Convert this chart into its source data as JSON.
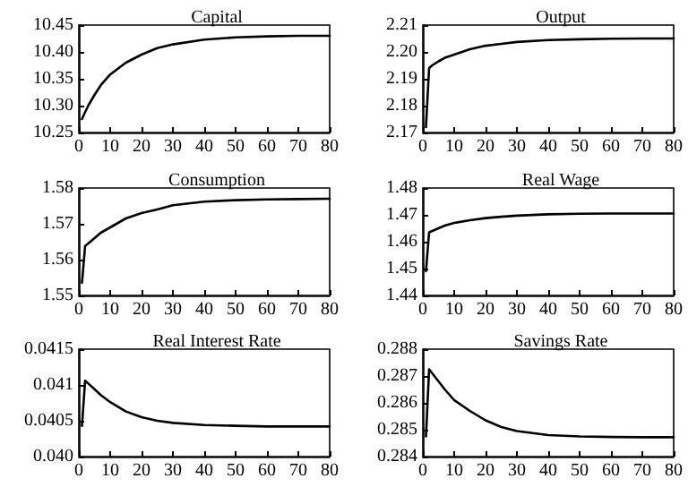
{
  "chart_data": [
    {
      "type": "line",
      "title": "Capital",
      "x": [
        1,
        2,
        3,
        5,
        7,
        10,
        15,
        20,
        25,
        30,
        40,
        50,
        60,
        70,
        80
      ],
      "xlim": [
        0,
        80
      ],
      "xticks": [
        0,
        10,
        20,
        30,
        40,
        50,
        60,
        70,
        80
      ],
      "ylim": [
        10.25,
        10.45
      ],
      "yticks": [
        10.25,
        {
          "value": 10.3,
          "label": "10.30"
        },
        10.35,
        {
          "value": 10.4,
          "label": "10.40"
        },
        10.45
      ],
      "grid": false,
      "marker": "none",
      "line_style": "solid",
      "series": [
        {
          "color": "#000000",
          "values": [
            10.275,
            10.288,
            10.3,
            10.32,
            10.338,
            10.358,
            10.38,
            10.395,
            10.407,
            10.414,
            10.423,
            10.427,
            10.429,
            10.43,
            10.43
          ]
        }
      ]
    },
    {
      "type": "line",
      "title": "Output",
      "x": [
        1,
        2,
        3,
        5,
        7,
        10,
        15,
        20,
        25,
        30,
        40,
        50,
        60,
        70,
        80
      ],
      "xlim": [
        0,
        80
      ],
      "xticks": [
        0,
        10,
        20,
        30,
        40,
        50,
        60,
        70,
        80
      ],
      "ylim": [
        2.17,
        2.21
      ],
      "yticks": [
        2.17,
        2.18,
        2.19,
        {
          "value": 2.2,
          "label": "2.20"
        },
        2.21
      ],
      "grid": false,
      "marker": "none",
      "line_style": "solid",
      "series": [
        {
          "color": "#000000",
          "values": [
            2.172,
            2.194,
            2.195,
            2.1965,
            2.1978,
            2.199,
            2.201,
            2.2023,
            2.203,
            2.2037,
            2.2044,
            2.2047,
            2.2049,
            2.205,
            2.205
          ]
        }
      ]
    },
    {
      "type": "line",
      "title": "Consumption",
      "x": [
        1,
        2,
        3,
        5,
        7,
        10,
        15,
        20,
        25,
        30,
        40,
        50,
        60,
        70,
        80
      ],
      "xlim": [
        0,
        80
      ],
      "xticks": [
        0,
        10,
        20,
        30,
        40,
        50,
        60,
        70,
        80
      ],
      "ylim": [
        1.55,
        1.58
      ],
      "yticks": [
        1.55,
        1.56,
        1.57,
        1.58
      ],
      "grid": false,
      "marker": "none",
      "line_style": "solid",
      "series": [
        {
          "color": "#000000",
          "values": [
            1.5535,
            1.5638,
            1.5645,
            1.566,
            1.5675,
            1.569,
            1.5715,
            1.573,
            1.574,
            1.5752,
            1.5762,
            1.5766,
            1.5768,
            1.5769,
            1.577
          ]
        }
      ]
    },
    {
      "type": "line",
      "title": "Real Wage",
      "x": [
        1,
        2,
        3,
        5,
        7,
        10,
        15,
        20,
        25,
        30,
        40,
        50,
        60,
        70,
        80
      ],
      "xlim": [
        0,
        80
      ],
      "xticks": [
        0,
        10,
        20,
        30,
        40,
        50,
        60,
        70,
        80
      ],
      "ylim": [
        1.44,
        1.48
      ],
      "yticks": [
        1.44,
        1.45,
        1.46,
        1.47,
        1.48
      ],
      "grid": false,
      "marker": "none",
      "line_style": "solid",
      "series": [
        {
          "color": "#000000",
          "values": [
            1.449,
            1.4635,
            1.464,
            1.465,
            1.466,
            1.467,
            1.468,
            1.4688,
            1.4693,
            1.4697,
            1.4702,
            1.4704,
            1.4705,
            1.4705,
            1.4705
          ]
        }
      ]
    },
    {
      "type": "line",
      "title": "Real Interest Rate",
      "x": [
        1,
        2,
        3,
        5,
        7,
        10,
        15,
        20,
        25,
        30,
        40,
        50,
        60,
        70,
        80
      ],
      "xlim": [
        0,
        80
      ],
      "xticks": [
        0,
        10,
        20,
        30,
        40,
        50,
        60,
        70,
        80
      ],
      "ylim": [
        0.04,
        0.0415
      ],
      "yticks": [
        {
          "value": 0.04,
          "label": "0.040"
        },
        0.0405,
        0.041,
        0.0415
      ],
      "grid": false,
      "marker": "none",
      "line_style": "solid",
      "series": [
        {
          "color": "#000000",
          "values": [
            0.04043,
            0.04106,
            0.04102,
            0.04094,
            0.04086,
            0.04076,
            0.04063,
            0.04055,
            0.0405,
            0.04047,
            0.04044,
            0.04043,
            0.04042,
            0.04042,
            0.04042
          ]
        }
      ]
    },
    {
      "type": "line",
      "title": "Savings Rate",
      "x": [
        1,
        2,
        3,
        5,
        7,
        10,
        15,
        20,
        25,
        30,
        40,
        50,
        60,
        70,
        80
      ],
      "xlim": [
        0,
        80
      ],
      "xticks": [
        0,
        10,
        20,
        30,
        40,
        50,
        60,
        70,
        80
      ],
      "ylim": [
        0.284,
        0.288
      ],
      "yticks": [
        0.284,
        0.285,
        0.286,
        0.287,
        0.288
      ],
      "grid": false,
      "marker": "none",
      "line_style": "solid",
      "series": [
        {
          "color": "#000000",
          "values": [
            0.28475,
            0.28725,
            0.2871,
            0.2868,
            0.2865,
            0.2861,
            0.2857,
            0.28535,
            0.2851,
            0.28495,
            0.2848,
            0.28475,
            0.28473,
            0.28472,
            0.28472
          ]
        }
      ]
    }
  ]
}
